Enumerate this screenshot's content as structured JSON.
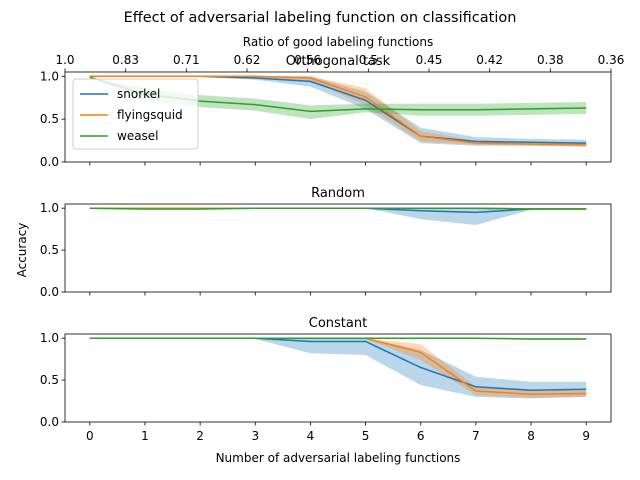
{
  "figure": {
    "suptitle": "Effect of adversarial labeling function on classification",
    "top_axis_label": "Ratio of good labeling functions",
    "top_tick_labels": [
      "1.0",
      "0.83",
      "0.71",
      "0.62",
      "0.56",
      "0.5",
      "0.45",
      "0.42",
      "0.38",
      "0.36"
    ],
    "ylabel": "Accuracy",
    "xlabel": "Number of adversarial labeling functions"
  },
  "colors": {
    "snorkel": "#1f77b4",
    "flyingsquid": "#ff7f0e",
    "weasel": "#2ca02c"
  },
  "chart_data": [
    {
      "type": "line",
      "title": "Orthogonal task",
      "x": [
        0,
        1,
        2,
        3,
        4,
        5,
        6,
        7,
        8,
        9
      ],
      "xlim": [
        -0.45,
        9.45
      ],
      "ylim": [
        0,
        1.05
      ],
      "yticks": [
        0.0,
        0.5,
        1.0
      ],
      "legend": "top-left",
      "series": [
        {
          "name": "snorkel",
          "values": [
            1.0,
            1.0,
            1.0,
            0.98,
            0.94,
            0.72,
            0.3,
            0.24,
            0.23,
            0.22
          ],
          "lower": [
            1.0,
            1.0,
            0.99,
            0.96,
            0.88,
            0.62,
            0.22,
            0.19,
            0.19,
            0.18
          ],
          "upper": [
            1.0,
            1.0,
            1.0,
            1.0,
            1.0,
            0.82,
            0.4,
            0.29,
            0.27,
            0.26
          ]
        },
        {
          "name": "flyingsquid",
          "values": [
            1.0,
            1.0,
            1.0,
            1.0,
            0.98,
            0.76,
            0.3,
            0.22,
            0.21,
            0.2
          ],
          "lower": [
            1.0,
            1.0,
            1.0,
            0.99,
            0.95,
            0.66,
            0.24,
            0.2,
            0.19,
            0.18
          ],
          "upper": [
            1.0,
            1.0,
            1.0,
            1.0,
            1.0,
            0.86,
            0.36,
            0.25,
            0.23,
            0.22
          ]
        },
        {
          "name": "weasel",
          "values": [
            0.99,
            0.79,
            0.71,
            0.67,
            0.59,
            0.62,
            0.61,
            0.61,
            0.62,
            0.63
          ],
          "lower": [
            0.99,
            0.72,
            0.64,
            0.6,
            0.5,
            0.58,
            0.54,
            0.54,
            0.55,
            0.56
          ],
          "upper": [
            0.99,
            0.86,
            0.78,
            0.74,
            0.66,
            0.68,
            0.68,
            0.68,
            0.69,
            0.7
          ]
        }
      ]
    },
    {
      "type": "line",
      "title": "Random",
      "x": [
        0,
        1,
        2,
        3,
        4,
        5,
        6,
        7,
        8,
        9
      ],
      "xlim": [
        -0.45,
        9.45
      ],
      "ylim": [
        0,
        1.05
      ],
      "yticks": [
        0.0,
        0.5,
        1.0
      ],
      "series": [
        {
          "name": "snorkel",
          "values": [
            1.0,
            1.0,
            1.0,
            1.0,
            1.0,
            1.0,
            0.97,
            0.95,
            0.99,
            0.99
          ],
          "lower": [
            1.0,
            1.0,
            1.0,
            1.0,
            1.0,
            1.0,
            0.87,
            0.8,
            0.98,
            0.98
          ],
          "upper": [
            1.0,
            1.0,
            1.0,
            1.0,
            1.0,
            1.0,
            1.0,
            1.0,
            1.0,
            1.0
          ]
        },
        {
          "name": "flyingsquid",
          "values": [
            1.0,
            1.0,
            1.0,
            1.0,
            1.0,
            1.0,
            1.0,
            1.0,
            0.99,
            0.99
          ],
          "lower": [
            1.0,
            1.0,
            1.0,
            1.0,
            1.0,
            1.0,
            0.99,
            0.99,
            0.98,
            0.98
          ],
          "upper": [
            1.0,
            1.0,
            1.0,
            1.0,
            1.0,
            1.0,
            1.0,
            1.0,
            1.0,
            1.0
          ]
        },
        {
          "name": "weasel",
          "values": [
            1.0,
            0.99,
            0.99,
            1.0,
            1.0,
            1.0,
            1.0,
            1.0,
            0.99,
            0.99
          ],
          "lower": [
            0.99,
            0.98,
            0.98,
            0.99,
            0.99,
            0.99,
            0.99,
            0.99,
            0.98,
            0.98
          ],
          "upper": [
            1.0,
            1.0,
            1.0,
            1.0,
            1.0,
            1.0,
            1.0,
            1.0,
            1.0,
            1.0
          ]
        }
      ]
    },
    {
      "type": "line",
      "title": "Constant",
      "x": [
        0,
        1,
        2,
        3,
        4,
        5,
        6,
        7,
        8,
        9
      ],
      "xticks": [
        0,
        1,
        2,
        3,
        4,
        5,
        6,
        7,
        8,
        9
      ],
      "xlim": [
        -0.45,
        9.45
      ],
      "ylim": [
        0,
        1.05
      ],
      "yticks": [
        0.0,
        0.5,
        1.0
      ],
      "series": [
        {
          "name": "snorkel",
          "values": [
            1.0,
            1.0,
            1.0,
            1.0,
            0.96,
            0.96,
            0.65,
            0.42,
            0.38,
            0.39
          ],
          "lower": [
            1.0,
            1.0,
            1.0,
            0.99,
            0.82,
            0.8,
            0.44,
            0.3,
            0.28,
            0.3
          ],
          "upper": [
            1.0,
            1.0,
            1.0,
            1.0,
            1.0,
            1.0,
            0.86,
            0.54,
            0.48,
            0.48
          ]
        },
        {
          "name": "flyingsquid",
          "values": [
            1.0,
            1.0,
            1.0,
            1.0,
            1.0,
            1.0,
            0.83,
            0.37,
            0.33,
            0.34
          ],
          "lower": [
            1.0,
            1.0,
            1.0,
            1.0,
            1.0,
            0.99,
            0.74,
            0.32,
            0.29,
            0.3
          ],
          "upper": [
            1.0,
            1.0,
            1.0,
            1.0,
            1.0,
            1.0,
            0.93,
            0.42,
            0.37,
            0.38
          ]
        },
        {
          "name": "weasel",
          "values": [
            1.0,
            1.0,
            1.0,
            1.0,
            1.0,
            1.0,
            1.0,
            1.0,
            0.99,
            0.99
          ],
          "lower": [
            0.99,
            0.99,
            0.99,
            0.99,
            0.99,
            0.99,
            0.99,
            0.99,
            0.98,
            0.98
          ],
          "upper": [
            1.0,
            1.0,
            1.0,
            1.0,
            1.0,
            1.0,
            1.0,
            1.0,
            1.0,
            1.0
          ]
        }
      ]
    }
  ]
}
